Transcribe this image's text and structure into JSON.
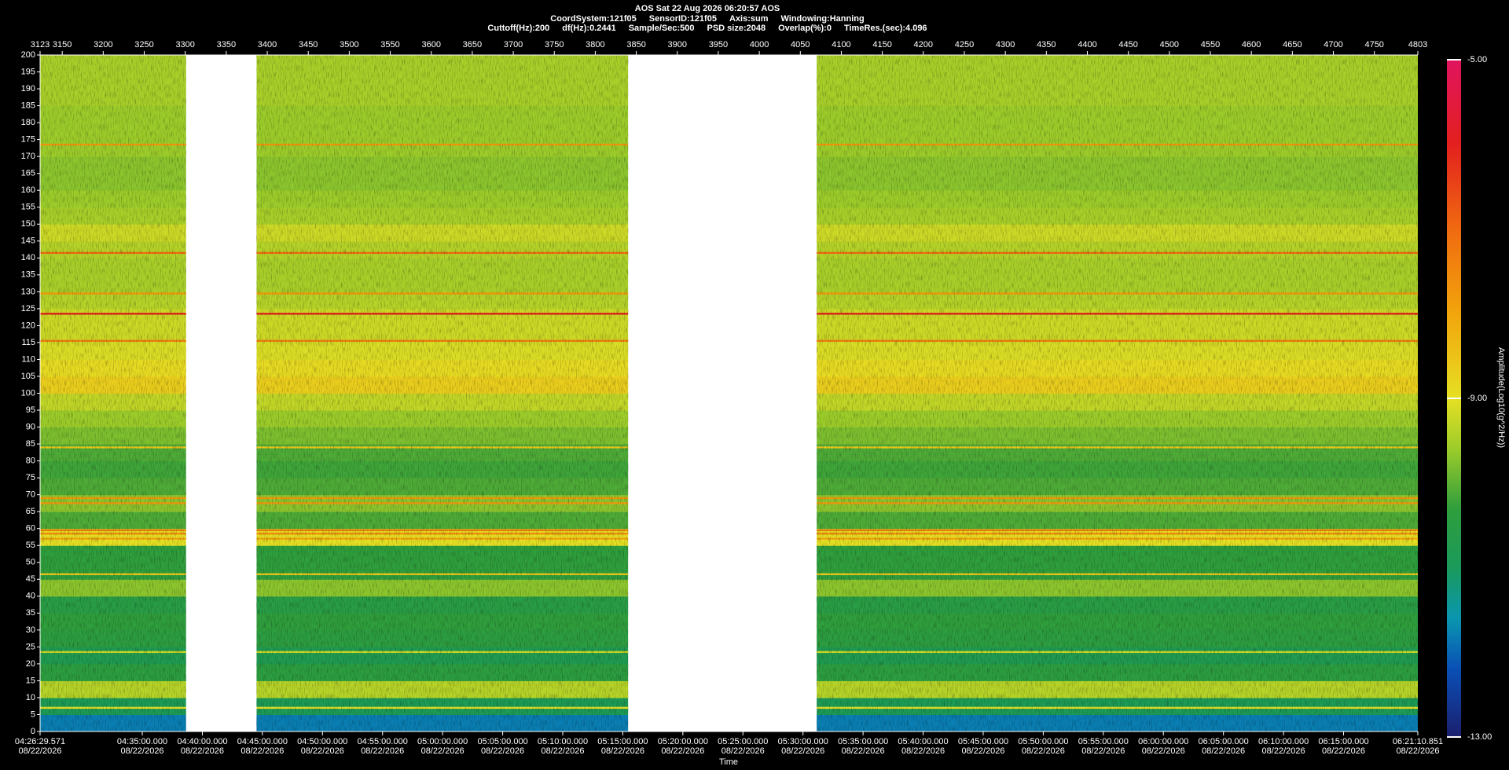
{
  "chart_data": {
    "type": "heatmap",
    "title": "AOS  Sat 22 Aug 2026 06:20:57  AOS",
    "info": [
      [
        "CoordSystem:121f05",
        "SensorID:121f05",
        "Axis:sum",
        "Windowing:Hanning"
      ],
      [
        "Cuttoff(Hz):200",
        "df(Hz):0.2441",
        "Sample/Sec:500",
        "PSD size:2048",
        "Overlap(%):0",
        "TimeRes.(sec):4.096"
      ]
    ],
    "xlabel": "Time",
    "colorbar_label": "Amplitude(Log10(g^2/Hz))",
    "xlim": [
      3123,
      4803
    ],
    "xticks": [
      3123,
      3150,
      3200,
      3250,
      3300,
      3350,
      3400,
      3450,
      3500,
      3550,
      3600,
      3650,
      3700,
      3750,
      3800,
      3850,
      3900,
      3950,
      4000,
      4050,
      4100,
      4150,
      4200,
      4250,
      4300,
      4350,
      4400,
      4450,
      4500,
      4550,
      4600,
      4650,
      4700,
      4750,
      4803
    ],
    "time_ticks": [
      {
        "value": 3123,
        "label": "04:26:29.571"
      },
      {
        "value": 3247.62,
        "label": "04:35:00.000"
      },
      {
        "value": 3320.86,
        "label": "04:40:00.000"
      },
      {
        "value": 3394.1,
        "label": "04:45:00.000"
      },
      {
        "value": 3467.34,
        "label": "04:50:00.000"
      },
      {
        "value": 3540.58,
        "label": "04:55:00.000"
      },
      {
        "value": 3613.83,
        "label": "05:00:00.000"
      },
      {
        "value": 3687.07,
        "label": "05:05:00.000"
      },
      {
        "value": 3760.31,
        "label": "05:10:00.000"
      },
      {
        "value": 3833.55,
        "label": "05:15:00.000"
      },
      {
        "value": 3906.79,
        "label": "05:20:00.000"
      },
      {
        "value": 3980.03,
        "label": "05:25:00.000"
      },
      {
        "value": 4053.28,
        "label": "05:30:00.000"
      },
      {
        "value": 4126.52,
        "label": "05:35:00.000"
      },
      {
        "value": 4199.76,
        "label": "05:40:00.000"
      },
      {
        "value": 4273.0,
        "label": "05:45:00.000"
      },
      {
        "value": 4346.24,
        "label": "05:50:00.000"
      },
      {
        "value": 4419.48,
        "label": "05:55:00.000"
      },
      {
        "value": 4492.73,
        "label": "06:00:00.000"
      },
      {
        "value": 4565.97,
        "label": "06:05:00.000"
      },
      {
        "value": 4639.21,
        "label": "06:10:00.000"
      },
      {
        "value": 4712.45,
        "label": "06:15:00.000"
      },
      {
        "value": 4803,
        "label": "06:21:10.851"
      }
    ],
    "time_dates": [
      "08/22/2026",
      "08/22/2026",
      "08/22/2026",
      "08/22/2026",
      "08/22/2026",
      "08/22/2026",
      "08/22/2026",
      "08/22/2026",
      "08/22/2026",
      "08/22/2026",
      "08/22/2026",
      "08/22/2026",
      "08/22/2026",
      "08/22/2026",
      "08/22/2026",
      "08/22/2026",
      "08/22/2026",
      "08/22/2026",
      "08/22/2026",
      "08/22/2026",
      "08/22/2026",
      "08/22/2026",
      "08/22/2026"
    ],
    "ylim": [
      0,
      200
    ],
    "yticks": [
      0,
      5,
      10,
      15,
      20,
      25,
      30,
      35,
      40,
      45,
      50,
      55,
      60,
      65,
      70,
      75,
      80,
      85,
      90,
      95,
      100,
      105,
      110,
      115,
      120,
      125,
      130,
      135,
      140,
      145,
      150,
      155,
      160,
      165,
      170,
      175,
      180,
      185,
      190,
      195,
      200
    ],
    "zlim": [
      -13,
      -5
    ],
    "zticks": [
      {
        "value": -5,
        "label": "-5.00"
      },
      {
        "value": -9,
        "label": "-9.00"
      },
      {
        "value": -13,
        "label": "-13.00"
      }
    ],
    "colormap": [
      {
        "value": -13,
        "color": "#1b1f6e"
      },
      {
        "value": -12.2,
        "color": "#0a4fb5"
      },
      {
        "value": -11.6,
        "color": "#0a96b0"
      },
      {
        "value": -11,
        "color": "#1a9a5a"
      },
      {
        "value": -10.3,
        "color": "#2f9e3c"
      },
      {
        "value": -9.6,
        "color": "#9ccc2a"
      },
      {
        "value": -9,
        "color": "#e6e024"
      },
      {
        "value": -8,
        "color": "#f2a50c"
      },
      {
        "value": -7,
        "color": "#f06a10"
      },
      {
        "value": -6,
        "color": "#e3201e"
      },
      {
        "value": -5,
        "color": "#e0145e"
      }
    ],
    "segments": [
      [
        3123,
        3301
      ],
      [
        3387,
        3840
      ],
      [
        4070,
        4803
      ]
    ],
    "bins": [
      0,
      5,
      10,
      15,
      20,
      25,
      30,
      35,
      40,
      45,
      50,
      55,
      60,
      65,
      70,
      75,
      80,
      85,
      90,
      95,
      100,
      105,
      110,
      115,
      120,
      125,
      130,
      135,
      140,
      145,
      150,
      155,
      160,
      165,
      170,
      175,
      180,
      185,
      190,
      195,
      200
    ],
    "band_values": [
      -11.8,
      -10.9,
      -9.4,
      -10.4,
      -10.8,
      -10.4,
      -10.3,
      -10.5,
      -9.7,
      -10.3,
      -10.3,
      -9.0,
      -10.1,
      -9.7,
      -10.1,
      -10.2,
      -10.1,
      -9.8,
      -9.6,
      -9.3,
      -8.7,
      -8.9,
      -9.1,
      -9.2,
      -9.2,
      -9.4,
      -9.5,
      -9.5,
      -9.4,
      -9.2,
      -9.5,
      -9.6,
      -9.7,
      -9.7,
      -9.6,
      -9.6,
      -9.6,
      -9.5,
      -9.5,
      -9.5
    ],
    "lines": [
      {
        "freq": 173.5,
        "value": -7.8
      },
      {
        "freq": 141.5,
        "value": -7.0
      },
      {
        "freq": 129.5,
        "value": -7.8
      },
      {
        "freq": 123.5,
        "value": -6.0
      },
      {
        "freq": 115.5,
        "value": -7.3
      },
      {
        "freq": 84,
        "value": -8.6
      },
      {
        "freq": 69,
        "value": -7.8
      },
      {
        "freq": 67.5,
        "value": -7.8
      },
      {
        "freq": 59.5,
        "value": -7.4
      },
      {
        "freq": 58.5,
        "value": -7.6
      },
      {
        "freq": 57,
        "value": -8.0
      },
      {
        "freq": 46.5,
        "value": -8.6
      },
      {
        "freq": 23.5,
        "value": -9.2
      },
      {
        "freq": 7,
        "value": -9.0
      }
    ]
  }
}
